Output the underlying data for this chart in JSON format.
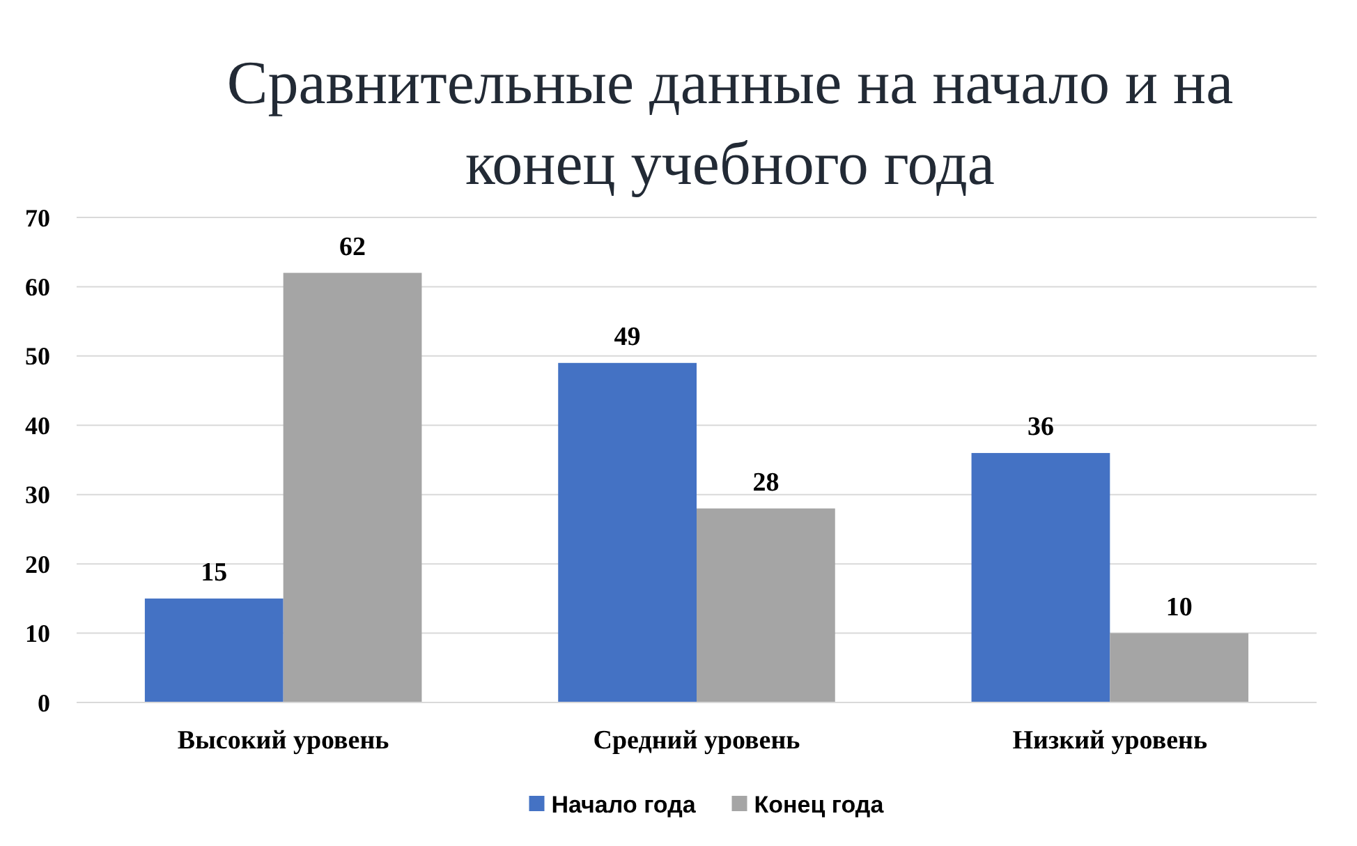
{
  "chart_data": {
    "type": "bar",
    "title": "Сравнительные данные на начало и на конец учебного года",
    "categories": [
      "Высокий уровень",
      "Средний уровень",
      "Низкий уровень"
    ],
    "series": [
      {
        "name": "Начало года",
        "color": "#4472c4",
        "values": [
          15,
          49,
          36
        ]
      },
      {
        "name": "Конец года",
        "color": "#a5a5a5",
        "values": [
          62,
          28,
          10
        ]
      }
    ],
    "ylim": [
      0,
      70
    ],
    "yticks": [
      0,
      10,
      20,
      30,
      40,
      50,
      60,
      70
    ],
    "grid": "y",
    "data_labels": true,
    "legend": "bottom"
  }
}
